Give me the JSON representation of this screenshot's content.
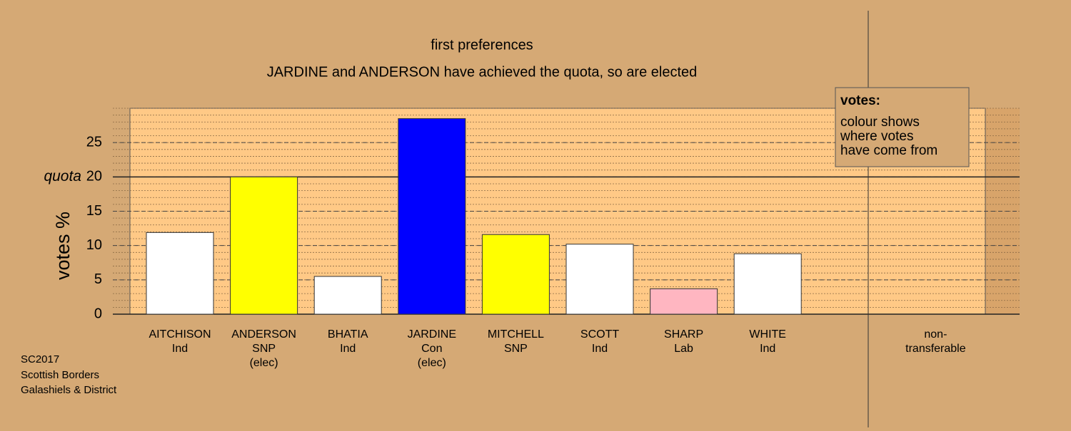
{
  "chart_data": {
    "type": "bar",
    "title": "first preferences",
    "subtitle": "JARDINE and ANDERSON have achieved the quota, so are elected",
    "y_label": "votes %",
    "categories": [
      [
        "AITCHISON",
        "Ind"
      ],
      [
        "ANDERSON",
        "SNP",
        "(elec)"
      ],
      [
        "BHATIA",
        "Ind"
      ],
      [
        "JARDINE",
        "Con",
        "(elec)"
      ],
      [
        "MITCHELL",
        "SNP"
      ],
      [
        "SCOTT",
        "Ind"
      ],
      [
        "SHARP",
        "Lab"
      ],
      [
        "WHITE",
        "Ind"
      ],
      null,
      [
        "non-",
        "transferable"
      ]
    ],
    "values": [
      11.9,
      20.0,
      5.5,
      28.5,
      11.6,
      10.2,
      3.7,
      8.8,
      null,
      null
    ],
    "colors": [
      "#ffffff",
      "#ffff00",
      "#ffffff",
      "#0000ff",
      "#ffff00",
      "#ffffff",
      "#ffb6c1",
      "#ffffff",
      null,
      null
    ],
    "ylim": [
      0,
      30
    ],
    "yticks": [
      0,
      5,
      10,
      15,
      20,
      25
    ],
    "minor_grid_step": 1,
    "quota": {
      "label": "quota",
      "value": 20
    },
    "legend": {
      "title": "votes:",
      "lines": [
        "colour shows",
        "where votes",
        "have come from"
      ]
    },
    "notes": [
      "SC2017",
      "Scottish Borders",
      "Galashiels & District"
    ]
  }
}
